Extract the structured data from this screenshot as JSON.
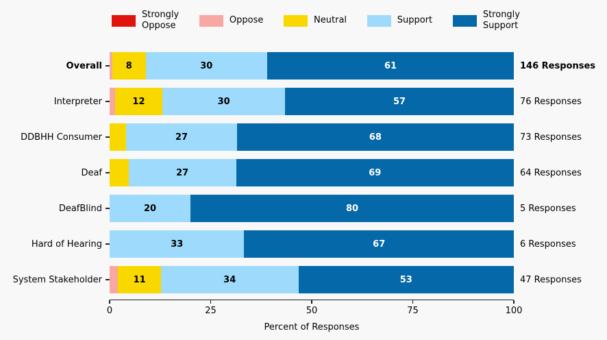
{
  "figure": {
    "background_color": "#f8f8f8",
    "axis_color": "#1a1a1a",
    "segment_label_color_default": "#000000",
    "segment_label_color_on_dark": "#ffffff"
  },
  "chart_data": {
    "type": "bar",
    "orientation": "horizontal",
    "stacked": true,
    "title": "",
    "xlabel": "Percent of Responses",
    "xlim": [
      0,
      100
    ],
    "xticks": [
      0,
      25,
      50,
      75,
      100
    ],
    "grid": false,
    "legend_position": "top",
    "legend": [
      {
        "key": "strongly_oppose",
        "label": "Strongly\nOppose",
        "color": "#e1140d"
      },
      {
        "key": "oppose",
        "label": "Oppose",
        "color": "#f8a8a2"
      },
      {
        "key": "neutral",
        "label": "Neutral",
        "color": "#f9d800"
      },
      {
        "key": "support",
        "label": "Support",
        "color": "#9edafc"
      },
      {
        "key": "strongly_support",
        "label": "Strongly\nSupport",
        "color": "#0568a8"
      }
    ],
    "rows": [
      {
        "category": "Overall",
        "bold": true,
        "responses_label": "146 Responses",
        "responses_bold": true,
        "segments": [
          {
            "key": "oppose",
            "value": 0.7,
            "label": ""
          },
          {
            "key": "neutral",
            "value": 8.2,
            "label": "8"
          },
          {
            "key": "support",
            "value": 30.1,
            "label": "30"
          },
          {
            "key": "strongly_support",
            "value": 61.0,
            "label": "61"
          }
        ]
      },
      {
        "category": "Interpreter",
        "bold": false,
        "responses_label": "76 Responses",
        "responses_bold": false,
        "segments": [
          {
            "key": "oppose",
            "value": 1.3,
            "label": ""
          },
          {
            "key": "neutral",
            "value": 11.8,
            "label": "12"
          },
          {
            "key": "support",
            "value": 30.3,
            "label": "30"
          },
          {
            "key": "strongly_support",
            "value": 56.6,
            "label": "57"
          }
        ]
      },
      {
        "category": "DDBHH Consumer",
        "bold": false,
        "responses_label": "73 Responses",
        "responses_bold": false,
        "segments": [
          {
            "key": "neutral",
            "value": 4.1,
            "label": ""
          },
          {
            "key": "support",
            "value": 27.4,
            "label": "27"
          },
          {
            "key": "strongly_support",
            "value": 68.5,
            "label": "68"
          }
        ]
      },
      {
        "category": "Deaf",
        "bold": false,
        "responses_label": "64 Responses",
        "responses_bold": false,
        "segments": [
          {
            "key": "neutral",
            "value": 4.7,
            "label": ""
          },
          {
            "key": "support",
            "value": 26.6,
            "label": "27"
          },
          {
            "key": "strongly_support",
            "value": 68.7,
            "label": "69"
          }
        ]
      },
      {
        "category": "DeafBlind",
        "bold": false,
        "responses_label": "5 Responses",
        "responses_bold": false,
        "segments": [
          {
            "key": "support",
            "value": 20.0,
            "label": "20"
          },
          {
            "key": "strongly_support",
            "value": 80.0,
            "label": "80"
          }
        ]
      },
      {
        "category": "Hard of Hearing",
        "bold": false,
        "responses_label": "6 Responses",
        "responses_bold": false,
        "segments": [
          {
            "key": "support",
            "value": 33.3,
            "label": "33"
          },
          {
            "key": "strongly_support",
            "value": 66.7,
            "label": "67"
          }
        ]
      },
      {
        "category": "System Stakeholder",
        "bold": false,
        "responses_label": "47 Responses",
        "responses_bold": false,
        "segments": [
          {
            "key": "oppose",
            "value": 2.1,
            "label": ""
          },
          {
            "key": "neutral",
            "value": 10.6,
            "label": "11"
          },
          {
            "key": "support",
            "value": 34.0,
            "label": "34"
          },
          {
            "key": "strongly_support",
            "value": 53.3,
            "label": "53"
          }
        ]
      }
    ]
  }
}
